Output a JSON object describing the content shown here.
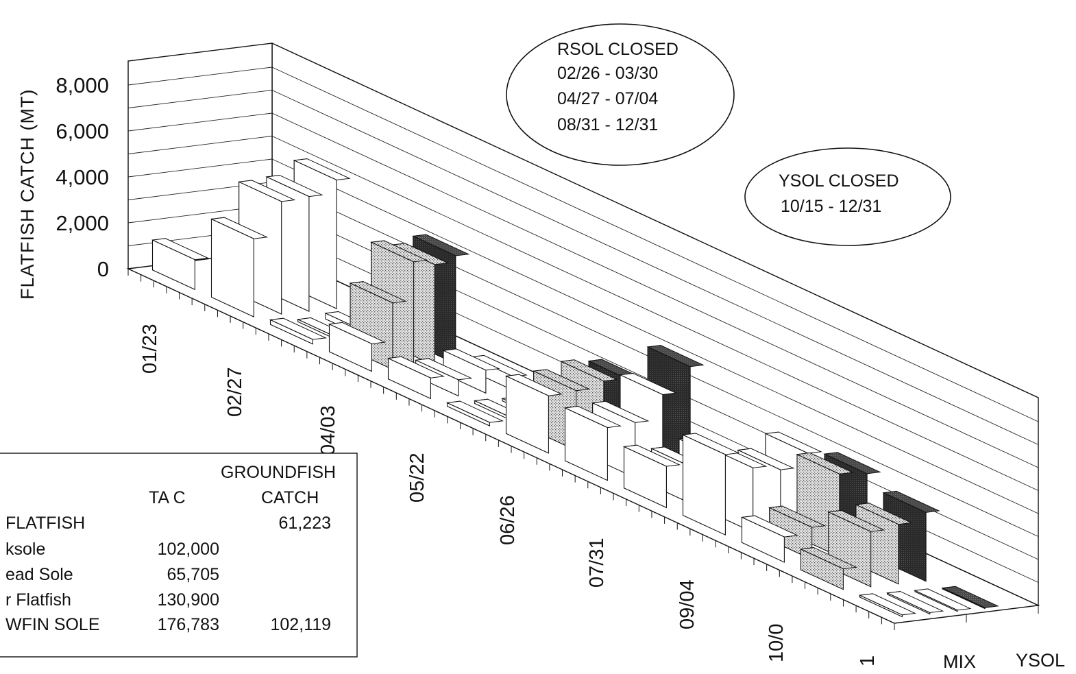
{
  "chart_data": {
    "type": "bar",
    "ylabel": "FLATFISH CATCH (MT)",
    "y_ticks": [
      "8,000",
      "6,000",
      "4,000",
      "2,000",
      "0"
    ],
    "x_ticks": [
      "01/23",
      "02/27",
      "04/03",
      "05/22",
      "06/26",
      "07/31",
      "09/04",
      "10/0",
      "1"
    ],
    "depth_labels": [
      "MIX",
      "YSOL"
    ],
    "series": [
      {
        "name": "MIX",
        "fill": "white"
      },
      {
        "name": "",
        "fill": "dotted"
      },
      {
        "name": "YSOL",
        "fill": "dark"
      }
    ],
    "groups": [
      {
        "x": 0,
        "bars": [
          {
            "s": 0,
            "v": 1300
          },
          {
            "s": 0,
            "v": 900
          }
        ]
      },
      {
        "x": 1,
        "bars": [
          {
            "s": 0,
            "v": 3400
          },
          {
            "s": 0,
            "v": 4900
          },
          {
            "s": 0,
            "v": 5000
          },
          {
            "s": 0,
            "v": 5600
          }
        ]
      },
      {
        "x": 2,
        "bars": [
          {
            "s": 0,
            "v": 200
          },
          {
            "s": 0,
            "v": 100
          },
          {
            "s": 0,
            "v": 250
          },
          {
            "s": 1,
            "v": 300
          }
        ]
      },
      {
        "x": 3,
        "bars": [
          {
            "s": 0,
            "v": 1200
          },
          {
            "s": 1,
            "v": 2900
          },
          {
            "s": 1,
            "v": 4600
          },
          {
            "s": 1,
            "v": 4400
          },
          {
            "s": 2,
            "v": 4700
          }
        ]
      },
      {
        "x": 4,
        "bars": [
          {
            "s": 0,
            "v": 900
          },
          {
            "s": 0,
            "v": 700
          },
          {
            "s": 0,
            "v": 1000
          },
          {
            "s": 0,
            "v": 600
          }
        ]
      },
      {
        "x": 5,
        "bars": [
          {
            "s": 0,
            "v": 150
          },
          {
            "s": 0,
            "v": 120
          },
          {
            "s": 0,
            "v": 100
          },
          {
            "s": 0,
            "v": 90
          }
        ]
      },
      {
        "x": 6,
        "bars": [
          {
            "s": 0,
            "v": 2500
          },
          {
            "s": 1,
            "v": 2600
          },
          {
            "s": 1,
            "v": 2900
          },
          {
            "s": 2,
            "v": 2800
          }
        ]
      },
      {
        "x": 7,
        "bars": [
          {
            "s": 0,
            "v": 2300
          },
          {
            "s": 0,
            "v": 2400
          },
          {
            "s": 0,
            "v": 3500
          },
          {
            "s": 2,
            "v": 4600
          }
        ]
      },
      {
        "x": 8,
        "bars": [
          {
            "s": 0,
            "v": 1800
          },
          {
            "s": 0,
            "v": 1600
          },
          {
            "s": 0,
            "v": 1900
          },
          {
            "s": 2,
            "v": 1400
          }
        ]
      },
      {
        "x": 9,
        "bars": [
          {
            "s": 0,
            "v": 3500
          },
          {
            "s": 0,
            "v": 2800
          },
          {
            "s": 0,
            "v": 2600
          },
          {
            "s": 0,
            "v": 3200
          }
        ]
      },
      {
        "x": 10,
        "bars": [
          {
            "s": 0,
            "v": 1100
          },
          {
            "s": 1,
            "v": 1400
          },
          {
            "s": 1,
            "v": 3600
          },
          {
            "s": 2,
            "v": 3500
          }
        ]
      },
      {
        "x": 11,
        "bars": [
          {
            "s": 1,
            "v": 900
          },
          {
            "s": 1,
            "v": 2400
          },
          {
            "s": 1,
            "v": 2600
          },
          {
            "s": 2,
            "v": 3000
          }
        ]
      },
      {
        "x": 12,
        "bars": [
          {
            "s": 0,
            "v": 80
          },
          {
            "s": 0,
            "v": 60
          },
          {
            "s": 0,
            "v": 50
          },
          {
            "s": 2,
            "v": 40
          }
        ]
      }
    ],
    "ylim": [
      0,
      8000
    ]
  },
  "annotations": {
    "rsol": [
      "RSOL CLOSED",
      "02/26 - 03/30",
      "04/27 - 07/04",
      "08/31 - 12/31"
    ],
    "ysol": [
      "YSOL CLOSED",
      "10/15 - 12/31"
    ]
  },
  "legend_table": {
    "headers": [
      "",
      "TA C",
      "GROUNDFISH",
      "CATCH"
    ],
    "rows": [
      [
        "FLATFISH",
        "",
        "61,223"
      ],
      [
        "ksole",
        "102,000",
        ""
      ],
      [
        "ead Sole",
        "65,705",
        ""
      ],
      [
        "r Flatfish",
        "130,900",
        ""
      ],
      [
        "WFIN SOLE",
        "176,783",
        "102,119"
      ]
    ]
  }
}
